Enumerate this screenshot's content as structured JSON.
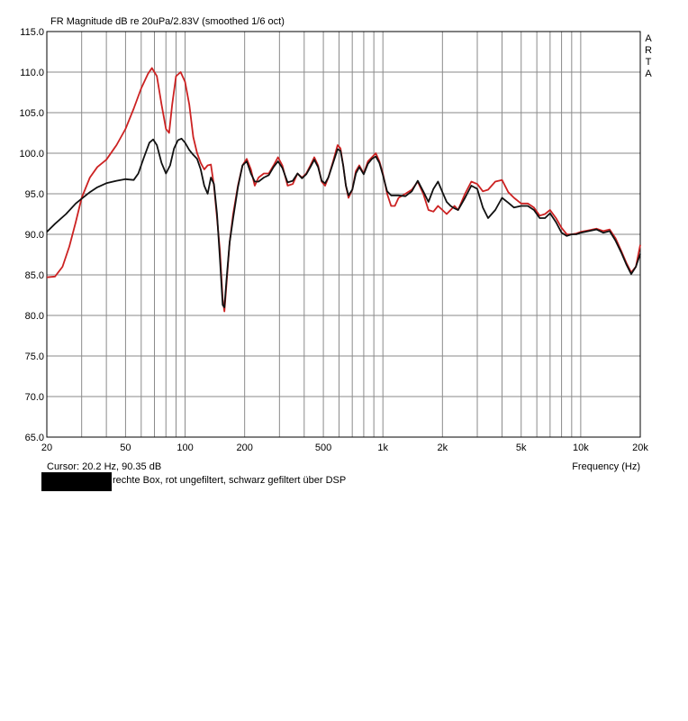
{
  "chart_data": {
    "type": "line",
    "title": "FR Magnitude dB re 20uPa/2.83V (smoothed 1/6 oct)",
    "watermark": [
      "A",
      "R",
      "T",
      "A"
    ],
    "xlabel": "Frequency (Hz)",
    "xscale": "log",
    "xlim": [
      20,
      20000
    ],
    "ylim": [
      65,
      115
    ],
    "grid": true,
    "ytick_labels": [
      "115.0",
      "110.0",
      "105.0",
      "100.0",
      "95.0",
      "90.0",
      "85.0",
      "80.0",
      "75.0",
      "70.0",
      "65.0"
    ],
    "xtick_labels": [
      {
        "v": 20,
        "t": "20"
      },
      {
        "v": 50,
        "t": "50"
      },
      {
        "v": 100,
        "t": "100"
      },
      {
        "v": 200,
        "t": "200"
      },
      {
        "v": 500,
        "t": "500"
      },
      {
        "v": 1000,
        "t": "1k"
      },
      {
        "v": 2000,
        "t": "2k"
      },
      {
        "v": 5000,
        "t": "5k"
      },
      {
        "v": 10000,
        "t": "10k"
      },
      {
        "v": 20000,
        "t": "20k"
      }
    ],
    "cursor": "Cursor: 20.2 Hz, 90.35 dB",
    "caption": "rechte Box, rot ungefiltert, schwarz gefiltert über DSP",
    "series": [
      {
        "color": "#cc2222",
        "points": [
          [
            20,
            84.7
          ],
          [
            22,
            84.8
          ],
          [
            24,
            86
          ],
          [
            26,
            88.5
          ],
          [
            28,
            91.5
          ],
          [
            30,
            94.5
          ],
          [
            33,
            97
          ],
          [
            36,
            98.3
          ],
          [
            40,
            99.2
          ],
          [
            45,
            101
          ],
          [
            50,
            103
          ],
          [
            55,
            105.5
          ],
          [
            60,
            108
          ],
          [
            65,
            109.8
          ],
          [
            68,
            110.5
          ],
          [
            72,
            109.5
          ],
          [
            76,
            106
          ],
          [
            80,
            103
          ],
          [
            83,
            102.5
          ],
          [
            86,
            106
          ],
          [
            90,
            109.5
          ],
          [
            95,
            110
          ],
          [
            100,
            108.8
          ],
          [
            105,
            106
          ],
          [
            110,
            102
          ],
          [
            115,
            100
          ],
          [
            120,
            98.8
          ],
          [
            125,
            98
          ],
          [
            130,
            98.5
          ],
          [
            135,
            98.6
          ],
          [
            140,
            96
          ],
          [
            145,
            92
          ],
          [
            150,
            88
          ],
          [
            155,
            82
          ],
          [
            158,
            80.5
          ],
          [
            162,
            84
          ],
          [
            168,
            89
          ],
          [
            175,
            92.5
          ],
          [
            185,
            96
          ],
          [
            195,
            98.5
          ],
          [
            205,
            99.3
          ],
          [
            215,
            98
          ],
          [
            225,
            96
          ],
          [
            235,
            97
          ],
          [
            250,
            97.5
          ],
          [
            265,
            97.5
          ],
          [
            280,
            98.5
          ],
          [
            295,
            99.5
          ],
          [
            310,
            98.5
          ],
          [
            330,
            96
          ],
          [
            350,
            96.2
          ],
          [
            370,
            97.5
          ],
          [
            390,
            97
          ],
          [
            410,
            97.5
          ],
          [
            430,
            98.5
          ],
          [
            450,
            99.5
          ],
          [
            470,
            98.5
          ],
          [
            490,
            96.5
          ],
          [
            510,
            96
          ],
          [
            530,
            97
          ],
          [
            560,
            99
          ],
          [
            590,
            101
          ],
          [
            610,
            100.6
          ],
          [
            630,
            98.5
          ],
          [
            650,
            96
          ],
          [
            670,
            94.5
          ],
          [
            700,
            95.5
          ],
          [
            730,
            97.8
          ],
          [
            760,
            98.5
          ],
          [
            800,
            97.5
          ],
          [
            840,
            99
          ],
          [
            880,
            99.5
          ],
          [
            920,
            100
          ],
          [
            960,
            99
          ],
          [
            1000,
            97.5
          ],
          [
            1050,
            95
          ],
          [
            1100,
            93.5
          ],
          [
            1150,
            93.5
          ],
          [
            1200,
            94.5
          ],
          [
            1300,
            95
          ],
          [
            1400,
            95.5
          ],
          [
            1500,
            96.5
          ],
          [
            1600,
            95
          ],
          [
            1700,
            93
          ],
          [
            1800,
            92.8
          ],
          [
            1900,
            93.5
          ],
          [
            2000,
            93
          ],
          [
            2100,
            92.5
          ],
          [
            2200,
            93
          ],
          [
            2300,
            93.5
          ],
          [
            2400,
            93
          ],
          [
            2600,
            95
          ],
          [
            2800,
            96.5
          ],
          [
            3000,
            96.2
          ],
          [
            3200,
            95.3
          ],
          [
            3400,
            95.5
          ],
          [
            3700,
            96.5
          ],
          [
            4000,
            96.7
          ],
          [
            4300,
            95.2
          ],
          [
            4600,
            94.5
          ],
          [
            5000,
            93.8
          ],
          [
            5400,
            93.8
          ],
          [
            5800,
            93.3
          ],
          [
            6200,
            92.3
          ],
          [
            6600,
            92.5
          ],
          [
            7000,
            93
          ],
          [
            7500,
            92
          ],
          [
            8000,
            90.8
          ],
          [
            8500,
            90
          ],
          [
            9000,
            90
          ],
          [
            9500,
            90.1
          ],
          [
            10000,
            90.3
          ],
          [
            11000,
            90.5
          ],
          [
            12000,
            90.7
          ],
          [
            13000,
            90.4
          ],
          [
            14000,
            90.6
          ],
          [
            15000,
            89.5
          ],
          [
            16000,
            88
          ],
          [
            17000,
            86.5
          ],
          [
            18000,
            85.3
          ],
          [
            19000,
            86
          ],
          [
            20000,
            88.7
          ]
        ]
      },
      {
        "color": "#111111",
        "points": [
          [
            20,
            90.3
          ],
          [
            22,
            91.3
          ],
          [
            25,
            92.5
          ],
          [
            28,
            93.8
          ],
          [
            30,
            94.4
          ],
          [
            33,
            95.2
          ],
          [
            36,
            95.8
          ],
          [
            40,
            96.3
          ],
          [
            45,
            96.6
          ],
          [
            50,
            96.8
          ],
          [
            55,
            96.7
          ],
          [
            58,
            97.5
          ],
          [
            62,
            99.5
          ],
          [
            66,
            101.3
          ],
          [
            69,
            101.7
          ],
          [
            72,
            101
          ],
          [
            76,
            98.8
          ],
          [
            80,
            97.5
          ],
          [
            84,
            98.5
          ],
          [
            88,
            100.6
          ],
          [
            92,
            101.6
          ],
          [
            96,
            101.8
          ],
          [
            100,
            101.3
          ],
          [
            105,
            100.4
          ],
          [
            110,
            99.8
          ],
          [
            115,
            99.3
          ],
          [
            120,
            98
          ],
          [
            125,
            96
          ],
          [
            130,
            95
          ],
          [
            135,
            97
          ],
          [
            140,
            96.2
          ],
          [
            145,
            92.5
          ],
          [
            150,
            87
          ],
          [
            155,
            81.3
          ],
          [
            158,
            81
          ],
          [
            162,
            84.5
          ],
          [
            168,
            89
          ],
          [
            175,
            92
          ],
          [
            185,
            95.8
          ],
          [
            195,
            98.5
          ],
          [
            205,
            99
          ],
          [
            215,
            97.5
          ],
          [
            225,
            96.5
          ],
          [
            235,
            96.5
          ],
          [
            250,
            97
          ],
          [
            265,
            97.3
          ],
          [
            280,
            98.3
          ],
          [
            295,
            99
          ],
          [
            310,
            98.2
          ],
          [
            330,
            96.4
          ],
          [
            350,
            96.6
          ],
          [
            370,
            97.5
          ],
          [
            390,
            96.9
          ],
          [
            410,
            97.4
          ],
          [
            430,
            98.3
          ],
          [
            450,
            99.2
          ],
          [
            470,
            98.3
          ],
          [
            490,
            96.6
          ],
          [
            510,
            96.3
          ],
          [
            530,
            97
          ],
          [
            560,
            98.8
          ],
          [
            590,
            100.5
          ],
          [
            610,
            100.3
          ],
          [
            630,
            98.5
          ],
          [
            650,
            96
          ],
          [
            670,
            94.8
          ],
          [
            700,
            95.5
          ],
          [
            730,
            97.5
          ],
          [
            760,
            98.3
          ],
          [
            800,
            97.4
          ],
          [
            840,
            98.7
          ],
          [
            880,
            99.3
          ],
          [
            920,
            99.6
          ],
          [
            960,
            98.8
          ],
          [
            1000,
            97.3
          ],
          [
            1050,
            95.3
          ],
          [
            1100,
            94.8
          ],
          [
            1150,
            94.8
          ],
          [
            1200,
            94.8
          ],
          [
            1300,
            94.7
          ],
          [
            1400,
            95.3
          ],
          [
            1500,
            96.6
          ],
          [
            1600,
            95.3
          ],
          [
            1700,
            94
          ],
          [
            1800,
            95.6
          ],
          [
            1900,
            96.5
          ],
          [
            2000,
            95.2
          ],
          [
            2100,
            94
          ],
          [
            2200,
            93.5
          ],
          [
            2300,
            93.2
          ],
          [
            2400,
            93
          ],
          [
            2600,
            94.5
          ],
          [
            2800,
            96
          ],
          [
            3000,
            95.6
          ],
          [
            3200,
            93.3
          ],
          [
            3400,
            92
          ],
          [
            3700,
            93
          ],
          [
            4000,
            94.5
          ],
          [
            4300,
            93.9
          ],
          [
            4600,
            93.3
          ],
          [
            5000,
            93.5
          ],
          [
            5400,
            93.5
          ],
          [
            5800,
            93
          ],
          [
            6200,
            92
          ],
          [
            6600,
            92
          ],
          [
            7000,
            92.6
          ],
          [
            7500,
            91.5
          ],
          [
            8000,
            90.2
          ],
          [
            8500,
            89.8
          ],
          [
            9000,
            90
          ],
          [
            9500,
            90
          ],
          [
            10000,
            90.2
          ],
          [
            11000,
            90.4
          ],
          [
            12000,
            90.6
          ],
          [
            13000,
            90.2
          ],
          [
            14000,
            90.4
          ],
          [
            15000,
            89.2
          ],
          [
            16000,
            87.8
          ],
          [
            17000,
            86.3
          ],
          [
            18000,
            85.1
          ],
          [
            19000,
            86
          ],
          [
            20000,
            87.6
          ]
        ]
      }
    ]
  }
}
